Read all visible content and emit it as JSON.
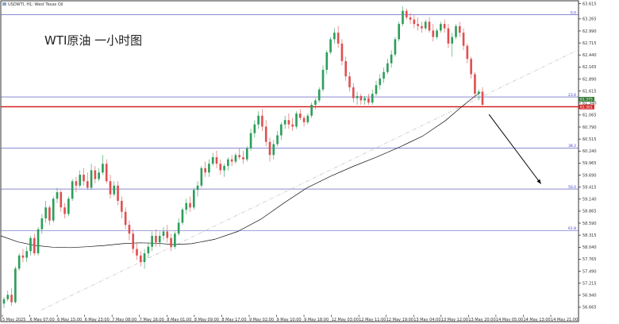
{
  "header": {
    "symbol": "USDWTI, H1: West Texas Oil"
  },
  "title_overlay": "WTI原油 一小时图",
  "chart_data": {
    "type": "candlestick",
    "title": "WTI原油 一小时图",
    "symbol": "USDWTI, H1: West Texas Oil",
    "y_axis_position": "right",
    "ylim": [
      56.5,
      63.68
    ],
    "y_ticks": [
      "63.615",
      "63.265",
      "62.990",
      "62.715",
      "62.440",
      "62.165",
      "61.890",
      "61.615",
      "61.340",
      "61.065",
      "60.790",
      "60.515",
      "60.240",
      "59.965",
      "59.690",
      "59.415",
      "59.140",
      "58.865",
      "58.590",
      "58.315",
      "58.040",
      "57.765",
      "57.490",
      "57.215",
      "56.940",
      "56.665"
    ],
    "x_ticks": [
      "5 May 2025",
      "6 May 07:00",
      "6 May 15:00",
      "6 May 23:00",
      "7 May 08:00",
      "7 May 16:00",
      "8 May 01:00",
      "8 May 09:00",
      "8 May 17:00",
      "9 May 02:00",
      "9 May 10:00",
      "9 May 18:00",
      "12 May 03:00",
      "12 May 11:00",
      "12 May 19:00",
      "13 May 04:00",
      "13 May 12:00",
      "13 May 20:00",
      "14 May 05:00",
      "14 May 13:00",
      "14 May 21:00"
    ],
    "price_labels": [
      {
        "value": 61.375,
        "text": "61.375",
        "color": "#3a7d3a"
      },
      {
        "value": 61.301,
        "text": "61.301",
        "color": "#d03030"
      }
    ],
    "fib_levels": [
      {
        "label": "0.0",
        "value": 63.36
      },
      {
        "label": "23.6",
        "value": 61.48
      },
      {
        "label": "38.2",
        "value": 60.31
      },
      {
        "label": "50.0",
        "value": 59.37
      },
      {
        "label": "61.8",
        "value": 58.42
      }
    ],
    "support_line": {
      "value": 61.255,
      "color": "#d01010"
    },
    "trendline": {
      "from": {
        "x": 0.07,
        "y": 56.6
      },
      "to": {
        "x": 1.0,
        "y": 62.56
      },
      "style": "dash-dot",
      "color": "#b8b8b8"
    },
    "moving_average": {
      "color": "#111111",
      "points": [
        [
          0.0,
          58.3
        ],
        [
          0.03,
          58.16
        ],
        [
          0.06,
          58.08
        ],
        [
          0.09,
          58.04
        ],
        [
          0.12,
          58.03
        ],
        [
          0.15,
          58.05
        ],
        [
          0.18,
          58.08
        ],
        [
          0.21,
          58.12
        ],
        [
          0.24,
          58.14
        ],
        [
          0.27,
          58.13
        ],
        [
          0.3,
          58.1
        ],
        [
          0.33,
          58.12
        ],
        [
          0.37,
          58.22
        ],
        [
          0.41,
          58.4
        ],
        [
          0.45,
          58.68
        ],
        [
          0.49,
          59.05
        ],
        [
          0.53,
          59.4
        ],
        [
          0.57,
          59.66
        ],
        [
          0.61,
          59.89
        ],
        [
          0.65,
          60.1
        ],
        [
          0.69,
          60.33
        ],
        [
          0.73,
          60.58
        ],
        [
          0.77,
          60.94
        ],
        [
          0.8,
          61.28
        ],
        [
          0.82,
          61.49
        ],
        [
          0.83,
          61.58
        ]
      ]
    },
    "projection_arrow": {
      "from": {
        "x": 0.845,
        "y": 61.08
      },
      "to": {
        "x": 0.935,
        "y": 59.49
      }
    },
    "up_color": "#2c9e5a",
    "down_color": "#e05050",
    "candles_ohlc": [
      [
        56.75,
        56.9,
        56.65,
        56.85
      ],
      [
        56.85,
        57.05,
        56.8,
        56.95
      ],
      [
        56.95,
        57.1,
        56.7,
        56.78
      ],
      [
        56.78,
        57.6,
        56.75,
        57.55
      ],
      [
        57.55,
        57.9,
        57.5,
        57.85
      ],
      [
        57.85,
        58.0,
        57.7,
        57.8
      ],
      [
        57.8,
        58.05,
        57.7,
        57.95
      ],
      [
        57.95,
        58.3,
        57.85,
        58.25
      ],
      [
        58.25,
        58.35,
        57.85,
        57.9
      ],
      [
        57.9,
        58.5,
        57.85,
        58.45
      ],
      [
        58.45,
        58.8,
        58.35,
        58.7
      ],
      [
        58.7,
        59.1,
        58.6,
        58.95
      ],
      [
        58.95,
        59.0,
        58.55,
        58.65
      ],
      [
        58.65,
        59.2,
        58.6,
        59.15
      ],
      [
        59.15,
        59.4,
        59.05,
        59.3
      ],
      [
        59.3,
        59.35,
        58.85,
        58.95
      ],
      [
        58.95,
        59.05,
        58.7,
        58.8
      ],
      [
        58.8,
        59.2,
        58.75,
        59.15
      ],
      [
        59.15,
        59.6,
        59.1,
        59.55
      ],
      [
        59.55,
        59.65,
        59.3,
        59.45
      ],
      [
        59.45,
        59.8,
        59.4,
        59.7
      ],
      [
        59.7,
        59.85,
        59.45,
        59.55
      ],
      [
        59.55,
        59.75,
        59.35,
        59.4
      ],
      [
        59.4,
        59.95,
        59.35,
        59.8
      ],
      [
        59.8,
        59.9,
        59.5,
        59.6
      ],
      [
        59.6,
        59.85,
        59.55,
        59.75
      ],
      [
        59.75,
        60.15,
        59.7,
        59.95
      ],
      [
        59.95,
        60.05,
        59.5,
        59.55
      ],
      [
        59.55,
        59.7,
        59.15,
        59.25
      ],
      [
        59.25,
        59.55,
        59.2,
        59.45
      ],
      [
        59.45,
        59.55,
        59.0,
        59.1
      ],
      [
        59.1,
        59.2,
        58.7,
        58.85
      ],
      [
        58.85,
        58.95,
        58.45,
        58.55
      ],
      [
        58.55,
        58.65,
        58.2,
        58.35
      ],
      [
        58.35,
        58.45,
        57.9,
        58.0
      ],
      [
        58.0,
        58.15,
        57.75,
        57.85
      ],
      [
        57.85,
        57.95,
        57.6,
        57.7
      ],
      [
        57.7,
        58.0,
        57.55,
        57.9
      ],
      [
        57.9,
        58.15,
        57.8,
        58.05
      ],
      [
        58.05,
        58.4,
        57.95,
        58.3
      ],
      [
        58.3,
        58.45,
        58.05,
        58.15
      ],
      [
        58.15,
        58.4,
        58.05,
        58.3
      ],
      [
        58.3,
        58.5,
        58.2,
        58.4
      ],
      [
        58.4,
        58.55,
        58.15,
        58.25
      ],
      [
        58.25,
        58.35,
        57.95,
        58.05
      ],
      [
        58.05,
        58.4,
        58.0,
        58.35
      ],
      [
        58.35,
        58.7,
        58.3,
        58.6
      ],
      [
        58.6,
        58.95,
        58.55,
        58.9
      ],
      [
        58.9,
        59.15,
        58.8,
        59.05
      ],
      [
        59.05,
        59.2,
        58.85,
        58.95
      ],
      [
        58.95,
        59.4,
        58.9,
        59.35
      ],
      [
        59.35,
        59.55,
        59.2,
        59.45
      ],
      [
        59.45,
        59.9,
        59.4,
        59.85
      ],
      [
        59.85,
        60.0,
        59.65,
        59.75
      ],
      [
        59.75,
        60.05,
        59.65,
        59.95
      ],
      [
        59.95,
        60.2,
        59.9,
        60.1
      ],
      [
        60.1,
        60.25,
        59.85,
        59.95
      ],
      [
        59.95,
        60.05,
        59.7,
        59.8
      ],
      [
        59.8,
        59.95,
        59.65,
        59.9
      ],
      [
        59.9,
        60.1,
        59.8,
        60.05
      ],
      [
        60.05,
        60.15,
        59.9,
        60.0
      ],
      [
        60.0,
        60.2,
        59.95,
        60.15
      ],
      [
        60.15,
        60.3,
        60.05,
        60.1
      ],
      [
        60.1,
        60.25,
        59.95,
        60.05
      ],
      [
        60.05,
        60.35,
        60.0,
        60.3
      ],
      [
        60.3,
        60.75,
        60.25,
        60.65
      ],
      [
        60.65,
        60.95,
        60.55,
        60.85
      ],
      [
        60.85,
        61.15,
        60.75,
        61.05
      ],
      [
        61.05,
        61.2,
        60.7,
        60.8
      ],
      [
        60.8,
        60.95,
        60.35,
        60.45
      ],
      [
        60.45,
        60.55,
        60.0,
        60.15
      ],
      [
        60.15,
        60.5,
        60.05,
        60.4
      ],
      [
        60.4,
        60.7,
        60.35,
        60.6
      ],
      [
        60.6,
        60.9,
        60.5,
        60.85
      ],
      [
        60.85,
        61.05,
        60.75,
        60.95
      ],
      [
        60.95,
        61.1,
        60.75,
        60.85
      ],
      [
        60.85,
        61.0,
        60.7,
        60.8
      ],
      [
        60.8,
        61.15,
        60.75,
        61.1
      ],
      [
        61.1,
        61.2,
        60.95,
        61.0
      ],
      [
        61.0,
        61.05,
        60.8,
        60.9
      ],
      [
        60.9,
        61.1,
        60.85,
        61.05
      ],
      [
        61.05,
        61.35,
        61.0,
        61.3
      ],
      [
        61.3,
        61.45,
        61.2,
        61.4
      ],
      [
        61.4,
        61.7,
        61.35,
        61.65
      ],
      [
        61.65,
        62.2,
        61.6,
        62.1
      ],
      [
        62.1,
        62.55,
        62.0,
        62.5
      ],
      [
        62.5,
        62.85,
        62.45,
        62.8
      ],
      [
        62.8,
        63.05,
        62.7,
        62.95
      ],
      [
        62.95,
        63.1,
        62.6,
        62.7
      ],
      [
        62.7,
        62.8,
        62.2,
        62.3
      ],
      [
        62.3,
        62.4,
        61.85,
        61.95
      ],
      [
        61.95,
        62.05,
        61.6,
        61.7
      ],
      [
        61.7,
        61.8,
        61.35,
        61.45
      ],
      [
        61.45,
        61.6,
        61.3,
        61.5
      ],
      [
        61.5,
        61.55,
        61.3,
        61.4
      ],
      [
        61.4,
        61.5,
        61.3,
        61.45
      ],
      [
        61.45,
        61.55,
        61.3,
        61.35
      ],
      [
        61.35,
        61.65,
        61.3,
        61.55
      ],
      [
        61.55,
        61.85,
        61.5,
        61.75
      ],
      [
        61.75,
        62.0,
        61.65,
        61.9
      ],
      [
        61.9,
        62.15,
        61.8,
        62.05
      ],
      [
        62.05,
        62.35,
        62.0,
        62.25
      ],
      [
        62.25,
        62.55,
        62.15,
        62.45
      ],
      [
        62.45,
        62.85,
        62.4,
        62.8
      ],
      [
        62.8,
        63.2,
        62.75,
        63.15
      ],
      [
        63.15,
        63.55,
        63.1,
        63.45
      ],
      [
        63.45,
        63.5,
        63.25,
        63.3
      ],
      [
        63.3,
        63.4,
        63.15,
        63.25
      ],
      [
        63.25,
        63.35,
        63.05,
        63.15
      ],
      [
        63.15,
        63.3,
        63.0,
        63.1
      ],
      [
        63.1,
        63.2,
        62.95,
        63.05
      ],
      [
        63.05,
        63.25,
        63.0,
        63.2
      ],
      [
        63.2,
        63.3,
        62.95,
        63.0
      ],
      [
        63.0,
        63.15,
        62.75,
        62.85
      ],
      [
        62.85,
        63.05,
        62.8,
        63.0
      ],
      [
        63.0,
        63.2,
        62.95,
        63.15
      ],
      [
        63.15,
        63.25,
        62.95,
        63.05
      ],
      [
        63.05,
        63.15,
        62.6,
        62.7
      ],
      [
        62.7,
        62.95,
        62.4,
        62.85
      ],
      [
        62.85,
        63.15,
        62.8,
        63.1
      ],
      [
        63.1,
        63.2,
        62.85,
        62.95
      ],
      [
        62.95,
        63.05,
        62.55,
        62.65
      ],
      [
        62.65,
        62.7,
        62.25,
        62.35
      ],
      [
        62.35,
        62.4,
        61.9,
        62.0
      ],
      [
        62.0,
        62.05,
        61.45,
        61.55
      ],
      [
        61.55,
        61.65,
        61.4,
        61.6
      ],
      [
        61.6,
        61.7,
        61.25,
        61.3
      ]
    ]
  }
}
